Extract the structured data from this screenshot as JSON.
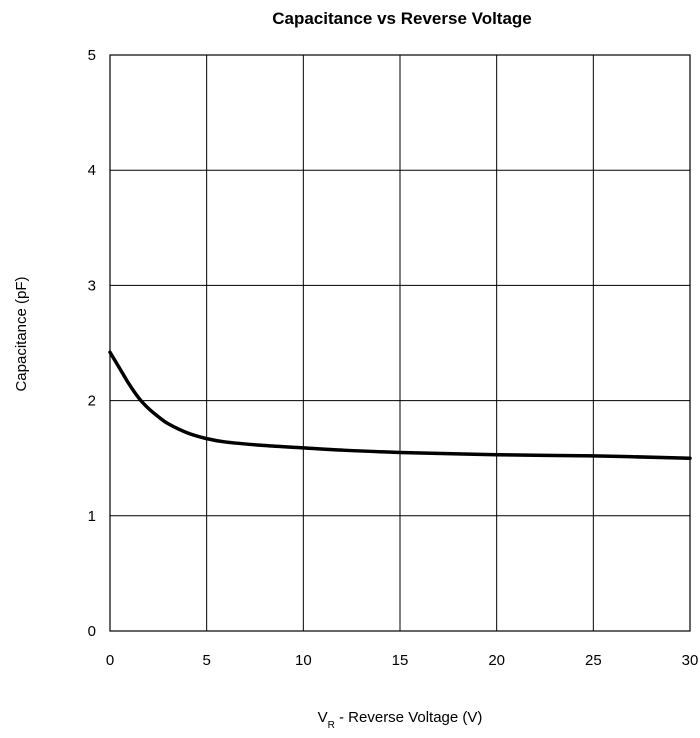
{
  "chart_data": {
    "type": "line",
    "title": "Capacitance vs Reverse Voltage",
    "xlabel": {
      "prefix": "V",
      "subscript": "R",
      "text": " - Reverse Voltage (V)"
    },
    "ylabel": "Capacitance (pF)",
    "xlim": [
      0,
      30
    ],
    "ylim": [
      0,
      5
    ],
    "x_ticks": [
      "0",
      "5",
      "10",
      "15",
      "20",
      "25",
      "30"
    ],
    "y_ticks": [
      "0",
      "1",
      "2",
      "3",
      "4",
      "5"
    ],
    "grid": true,
    "legend": "none",
    "series": [
      {
        "color": "#000000",
        "x": [
          0,
          0.5,
          1,
          1.5,
          2,
          2.5,
          3,
          4,
          5,
          6,
          8,
          10,
          12,
          15,
          20,
          25,
          30
        ],
        "y": [
          2.42,
          2.28,
          2.14,
          2.02,
          1.93,
          1.86,
          1.8,
          1.72,
          1.67,
          1.64,
          1.61,
          1.59,
          1.57,
          1.55,
          1.53,
          1.52,
          1.5
        ]
      }
    ]
  }
}
